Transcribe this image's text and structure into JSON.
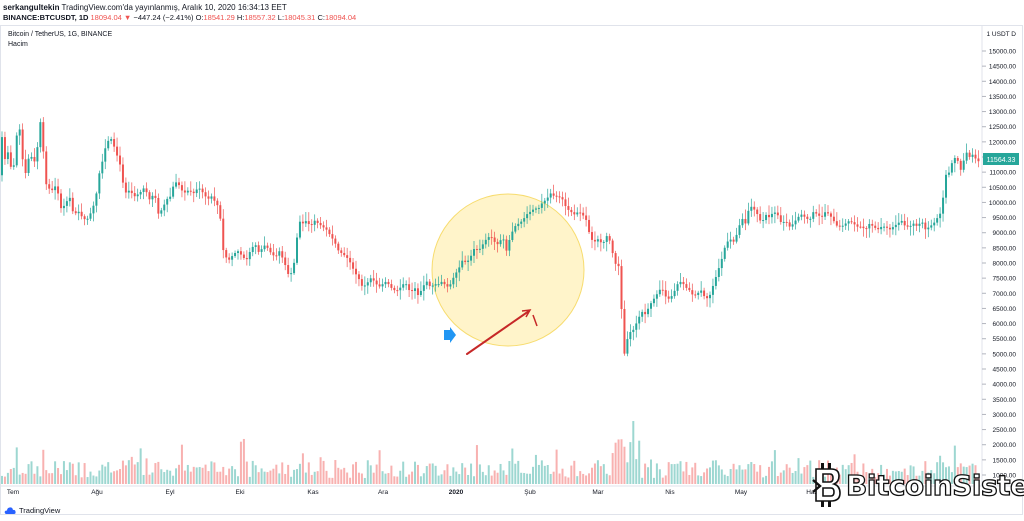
{
  "header": {
    "author": "serkangultekin",
    "published": "TradingView.com'da yayınlanmış, Aralık 10, 2020 16:34:13 EET",
    "symbol": "BINANCE:BTCUSDT, 1D",
    "last": "18094.04",
    "change": "−447.24 (−2.41%)",
    "o_label": "O:",
    "o_value": "18541.29",
    "h_label": "H:",
    "h_value": "18557.32",
    "l_label": "L:",
    "l_value": "18045.31",
    "c_label": "C:",
    "c_value": "18094.04"
  },
  "legend": {
    "series": "Bitcoin / TetherUS, 1G, BINANCE",
    "volume": "Hacim"
  },
  "branding": {
    "tradingview": "TradingView",
    "watermark": "BitcoinSistemi"
  },
  "colors": {
    "up": "#26a69a",
    "down": "#ef5350",
    "circle_fill": "#fff3c4",
    "circle_stroke": "#f7dc6f",
    "arrow": "#c62828",
    "marker": "#2196f3",
    "price_badge": "#26a69a"
  },
  "chart_data": {
    "type": "candlestick",
    "y_unit": "1 USDT D",
    "ylim": [
      950,
      15100
    ],
    "y_ticks": [
      "15000.00",
      "14500.00",
      "14000.00",
      "13500.00",
      "13000.00",
      "12500.00",
      "12000.00",
      "11500.00",
      "11000.00",
      "10500.00",
      "10000.00",
      "9500.00",
      "9000.00",
      "8500.00",
      "8000.00",
      "7500.00",
      "7000.00",
      "6500.00",
      "6000.00",
      "5500.00",
      "5000.00",
      "4500.00",
      "4000.00",
      "3500.00",
      "3000.00",
      "2500.00",
      "2000.00",
      "1500.00",
      "1000.00"
    ],
    "x_ticks": [
      "Tem",
      "Ağu",
      "Eyl",
      "Eki",
      "Kas",
      "Ara",
      "2020",
      "Şub",
      "Mar",
      "Nis",
      "May",
      "Haz"
    ],
    "last_price_badge": "11564.33",
    "path": [
      [
        0,
        10600
      ],
      [
        3,
        12300
      ],
      [
        6,
        11400
      ],
      [
        10,
        11700
      ],
      [
        14,
        10800
      ],
      [
        20,
        12800
      ],
      [
        26,
        10800
      ],
      [
        31,
        11600
      ],
      [
        37,
        11300
      ],
      [
        42,
        12700
      ],
      [
        48,
        10500
      ],
      [
        54,
        10400
      ],
      [
        58,
        10600
      ],
      [
        62,
        9800
      ],
      [
        66,
        9900
      ],
      [
        71,
        10200
      ],
      [
        75,
        9600
      ],
      [
        80,
        9700
      ],
      [
        84,
        9500
      ],
      [
        88,
        9400
      ],
      [
        93,
        9700
      ],
      [
        97,
        10100
      ],
      [
        101,
        11000
      ],
      [
        105,
        11500
      ],
      [
        108,
        12000
      ],
      [
        113,
        12100
      ],
      [
        118,
        11600
      ],
      [
        122,
        11200
      ],
      [
        126,
        10300
      ],
      [
        131,
        10400
      ],
      [
        136,
        10200
      ],
      [
        141,
        10300
      ],
      [
        146,
        10500
      ],
      [
        151,
        10100
      ],
      [
        156,
        10300
      ],
      [
        160,
        9600
      ],
      [
        164,
        9800
      ],
      [
        168,
        10100
      ],
      [
        172,
        10200
      ],
      [
        176,
        10700
      ],
      [
        180,
        10600
      ],
      [
        185,
        10300
      ],
      [
        190,
        10400
      ],
      [
        195,
        10300
      ],
      [
        200,
        10500
      ],
      [
        205,
        10300
      ],
      [
        209,
        10100
      ],
      [
        213,
        10200
      ],
      [
        217,
        10000
      ],
      [
        221,
        9800
      ],
      [
        224,
        8500
      ],
      [
        227,
        8200
      ],
      [
        231,
        8100
      ],
      [
        235,
        8300
      ],
      [
        240,
        8400
      ],
      [
        244,
        8200
      ],
      [
        248,
        8100
      ],
      [
        253,
        8500
      ],
      [
        257,
        8600
      ],
      [
        261,
        8300
      ],
      [
        265,
        8600
      ],
      [
        269,
        8500
      ],
      [
        273,
        8300
      ],
      [
        277,
        8200
      ],
      [
        281,
        8400
      ],
      [
        286,
        8000
      ],
      [
        290,
        7600
      ],
      [
        294,
        7700
      ],
      [
        297,
        8300
      ],
      [
        300,
        9400
      ],
      [
        304,
        9300
      ],
      [
        308,
        9400
      ],
      [
        312,
        9200
      ],
      [
        316,
        9400
      ],
      [
        320,
        9300
      ],
      [
        324,
        9200
      ],
      [
        328,
        9100
      ],
      [
        332,
        8900
      ],
      [
        336,
        8700
      ],
      [
        340,
        8400
      ],
      [
        344,
        8300
      ],
      [
        348,
        8200
      ],
      [
        352,
        8000
      ],
      [
        356,
        7700
      ],
      [
        360,
        7500
      ],
      [
        364,
        7200
      ],
      [
        368,
        7300
      ],
      [
        372,
        7500
      ],
      [
        376,
        7400
      ],
      [
        380,
        7200
      ],
      [
        384,
        7300
      ],
      [
        388,
        7400
      ],
      [
        392,
        7200
      ],
      [
        396,
        7100
      ],
      [
        400,
        7100
      ],
      [
        404,
        7300
      ],
      [
        408,
        7300
      ],
      [
        412,
        7000
      ],
      [
        416,
        7200
      ],
      [
        420,
        6900
      ],
      [
        424,
        7200
      ],
      [
        428,
        7400
      ],
      [
        432,
        7200
      ],
      [
        436,
        7300
      ],
      [
        440,
        7300
      ],
      [
        444,
        7400
      ],
      [
        448,
        7200
      ],
      [
        452,
        7300
      ],
      [
        456,
        7600
      ],
      [
        460,
        7800
      ],
      [
        464,
        8100
      ],
      [
        468,
        8000
      ],
      [
        472,
        8200
      ],
      [
        476,
        8500
      ],
      [
        480,
        8400
      ],
      [
        484,
        8600
      ],
      [
        488,
        8800
      ],
      [
        492,
        8900
      ],
      [
        496,
        8700
      ],
      [
        500,
        8600
      ],
      [
        504,
        8900
      ],
      [
        508,
        8400
      ],
      [
        512,
        8900
      ],
      [
        516,
        9200
      ],
      [
        520,
        9300
      ],
      [
        524,
        9400
      ],
      [
        528,
        9600
      ],
      [
        532,
        9700
      ],
      [
        536,
        9800
      ],
      [
        540,
        9800
      ],
      [
        544,
        10000
      ],
      [
        548,
        10100
      ],
      [
        552,
        10300
      ],
      [
        556,
        10200
      ],
      [
        560,
        10200
      ],
      [
        564,
        10100
      ],
      [
        568,
        9800
      ],
      [
        572,
        9700
      ],
      [
        576,
        9600
      ],
      [
        580,
        9700
      ],
      [
        584,
        9600
      ],
      [
        588,
        9400
      ],
      [
        592,
        8800
      ],
      [
        596,
        8700
      ],
      [
        600,
        8800
      ],
      [
        604,
        8600
      ],
      [
        608,
        8900
      ],
      [
        612,
        8700
      ],
      [
        616,
        8000
      ],
      [
        620,
        7900
      ],
      [
        622,
        7700
      ],
      [
        624,
        5200
      ],
      [
        626,
        5000
      ],
      [
        628,
        5400
      ],
      [
        631,
        5700
      ],
      [
        635,
        5800
      ],
      [
        639,
        6100
      ],
      [
        643,
        6400
      ],
      [
        647,
        6300
      ],
      [
        651,
        6600
      ],
      [
        655,
        6800
      ],
      [
        659,
        7000
      ],
      [
        663,
        7200
      ],
      [
        667,
        6900
      ],
      [
        671,
        6800
      ],
      [
        675,
        7000
      ],
      [
        679,
        7300
      ],
      [
        683,
        7400
      ],
      [
        687,
        7200
      ],
      [
        691,
        7100
      ],
      [
        695,
        6900
      ],
      [
        699,
        7000
      ],
      [
        703,
        7100
      ],
      [
        707,
        6800
      ],
      [
        711,
        6900
      ],
      [
        715,
        7300
      ],
      [
        719,
        7700
      ],
      [
        723,
        8100
      ],
      [
        727,
        8600
      ],
      [
        731,
        8800
      ],
      [
        735,
        8700
      ],
      [
        739,
        9000
      ],
      [
        743,
        9500
      ],
      [
        747,
        9300
      ],
      [
        751,
        9900
      ],
      [
        755,
        9800
      ],
      [
        759,
        9600
      ],
      [
        763,
        9300
      ],
      [
        767,
        9600
      ],
      [
        771,
        9500
      ],
      [
        775,
        9700
      ],
      [
        779,
        9600
      ],
      [
        783,
        9300
      ],
      [
        787,
        9400
      ],
      [
        791,
        9200
      ],
      [
        795,
        9300
      ],
      [
        799,
        9500
      ],
      [
        803,
        9600
      ],
      [
        807,
        9500
      ],
      [
        811,
        9400
      ],
      [
        815,
        9700
      ],
      [
        819,
        9600
      ],
      [
        823,
        9500
      ],
      [
        827,
        9700
      ],
      [
        831,
        9600
      ],
      [
        835,
        9400
      ],
      [
        839,
        9200
      ],
      [
        843,
        9200
      ],
      [
        847,
        9300
      ],
      [
        851,
        9400
      ],
      [
        855,
        9300
      ],
      [
        859,
        9200
      ],
      [
        863,
        9200
      ],
      [
        867,
        9100
      ],
      [
        871,
        9300
      ],
      [
        875,
        9200
      ],
      [
        879,
        9100
      ],
      [
        883,
        9200
      ],
      [
        887,
        9200
      ],
      [
        891,
        9100
      ],
      [
        895,
        9200
      ],
      [
        899,
        9300
      ],
      [
        903,
        9400
      ],
      [
        907,
        9200
      ],
      [
        911,
        9200
      ],
      [
        915,
        9300
      ],
      [
        919,
        9200
      ],
      [
        923,
        9400
      ],
      [
        927,
        9100
      ],
      [
        931,
        9200
      ],
      [
        935,
        9300
      ],
      [
        939,
        9500
      ],
      [
        943,
        9700
      ],
      [
        947,
        10900
      ],
      [
        951,
        11000
      ],
      [
        955,
        11500
      ],
      [
        959,
        11400
      ],
      [
        963,
        11000
      ],
      [
        967,
        11700
      ],
      [
        971,
        11500
      ],
      [
        975,
        11600
      ],
      [
        979,
        11300
      ],
      [
        983,
        11564
      ]
    ]
  }
}
